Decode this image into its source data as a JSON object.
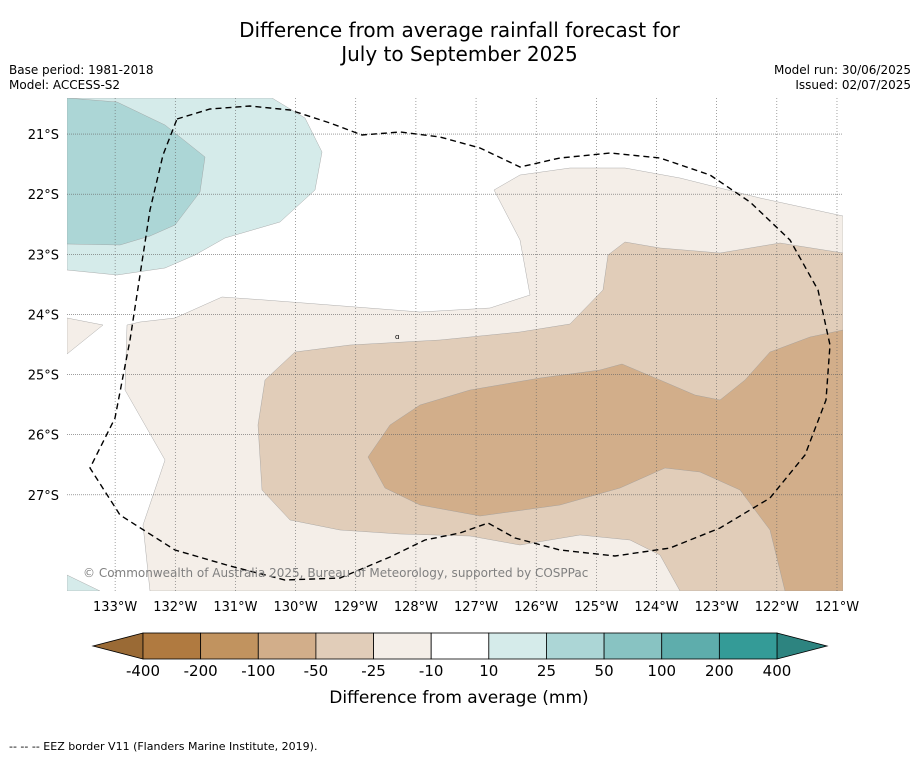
{
  "title_line1": "Difference from average rainfall forecast for",
  "title_line2": "July to September 2025",
  "base_period": "Base period: 1981-2018",
  "model": "Model: ACCESS-S2",
  "model_run": "Model run: 30/06/2025",
  "issued": "Issued: 02/07/2025",
  "copyright": "© Commonwealth of Australia 2025, Bureau of Meteorology, supported by COSPPac",
  "map": {
    "lon_labels": [
      "133°W",
      "132°W",
      "131°W",
      "130°W",
      "129°W",
      "128°W",
      "127°W",
      "126°W",
      "125°W",
      "124°W",
      "123°W",
      "122°W",
      "121°W"
    ],
    "lat_labels": [
      "21°S",
      "22°S",
      "23°S",
      "24°S",
      "25°S",
      "26°S",
      "27°S"
    ],
    "lon_values": [
      -133,
      -132,
      -131,
      -130,
      -129,
      -128,
      -127,
      -126,
      -125,
      -124,
      -123,
      -122,
      -121
    ],
    "lat_values": [
      -21,
      -22,
      -23,
      -24,
      -25,
      -26,
      -27
    ],
    "lon_range": [
      -133.8,
      -120.9
    ],
    "lat_range": [
      -28.6,
      -20.4
    ],
    "gridlines": true
  },
  "colorbar": {
    "tick_labels": [
      "-400",
      "-200",
      "-100",
      "-50",
      "-25",
      "-10",
      "10",
      "25",
      "50",
      "100",
      "200",
      "400"
    ],
    "colors": [
      "#b07a40",
      "#c1935f",
      "#d2ae8a",
      "#e1cdb9",
      "#f4eee8",
      "#ffffff",
      "#d5ebea",
      "#acd6d6",
      "#88c3c2",
      "#5eadac",
      "#349b97"
    ],
    "low_extend_color": "#9a6a35",
    "high_extend_color": "#2d8480",
    "label": "Difference from average (mm)"
  },
  "footer": "--  --  -- EEZ border V11 (Flanders Marine Institute, 2019)."
}
